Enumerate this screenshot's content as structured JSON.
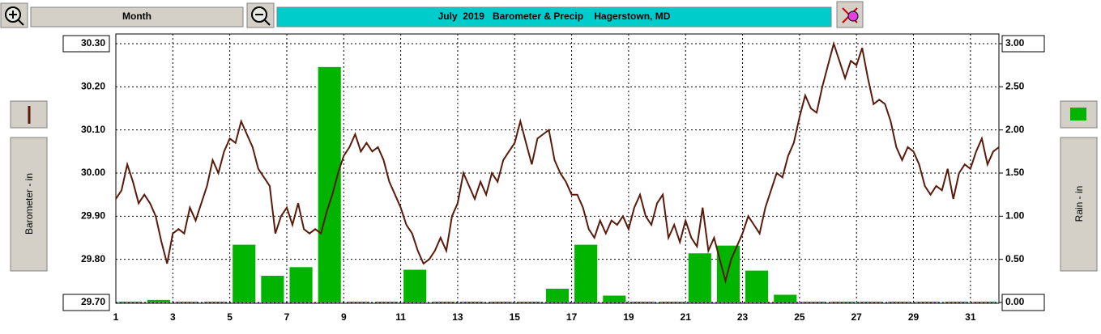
{
  "chart_data": {
    "type": "bar-line",
    "toolbar_label": "Month",
    "title": "July  2019   Barometer & Precip    Hagerstown, MD",
    "ylabel": "Barometer - in",
    "y2label": "Rain - in",
    "xlim": [
      1,
      32
    ],
    "xticks": [
      1,
      3,
      5,
      7,
      9,
      11,
      13,
      15,
      17,
      19,
      21,
      23,
      25,
      27,
      29,
      31
    ],
    "ylim": [
      29.7,
      30.3
    ],
    "yticks": [
      {
        "value": 29.7,
        "label": "29.70"
      },
      {
        "value": 29.8,
        "label": "29.80"
      },
      {
        "value": 29.9,
        "label": "29.90"
      },
      {
        "value": 30.0,
        "label": "30.00"
      },
      {
        "value": 30.1,
        "label": "30.10"
      },
      {
        "value": 30.2,
        "label": "30.20"
      },
      {
        "value": 30.3,
        "label": "30.30"
      }
    ],
    "y2lim": [
      0,
      3
    ],
    "y2ticks": [
      {
        "value": 0,
        "label": "0.00"
      },
      {
        "value": 0.5,
        "label": "0.50"
      },
      {
        "value": 1,
        "label": "1.00"
      },
      {
        "value": 1.5,
        "label": "1.50"
      },
      {
        "value": 2,
        "label": "2.00"
      },
      {
        "value": 2.5,
        "label": "2.50"
      },
      {
        "value": 3,
        "label": "3.00"
      }
    ],
    "grid": true,
    "series": [
      {
        "type": "line",
        "color": "#5a1a0a",
        "x": [
          1.0,
          1.2,
          1.4,
          1.6,
          1.8,
          2.0,
          2.2,
          2.4,
          2.6,
          2.8,
          3.0,
          3.2,
          3.4,
          3.6,
          3.8,
          4.0,
          4.2,
          4.4,
          4.6,
          4.8,
          5.0,
          5.2,
          5.4,
          5.6,
          5.8,
          6.0,
          6.2,
          6.4,
          6.6,
          6.8,
          7.0,
          7.2,
          7.4,
          7.6,
          7.8,
          8.0,
          8.2,
          8.4,
          8.6,
          8.8,
          9.0,
          9.2,
          9.4,
          9.6,
          9.8,
          10.0,
          10.2,
          10.4,
          10.6,
          10.8,
          11.0,
          11.2,
          11.4,
          11.6,
          11.8,
          12.0,
          12.2,
          12.4,
          12.6,
          12.8,
          13.0,
          13.2,
          13.4,
          13.6,
          13.8,
          14.0,
          14.2,
          14.4,
          14.6,
          14.8,
          15.0,
          15.2,
          15.4,
          15.6,
          15.8,
          16.0,
          16.2,
          16.4,
          16.6,
          16.8,
          17.0,
          17.2,
          17.4,
          17.6,
          17.8,
          18.0,
          18.2,
          18.4,
          18.6,
          18.8,
          19.0,
          19.2,
          19.4,
          19.6,
          19.8,
          20.0,
          20.2,
          20.4,
          20.6,
          20.8,
          21.0,
          21.2,
          21.4,
          21.6,
          21.8,
          22.0,
          22.2,
          22.4,
          22.6,
          22.8,
          23.0,
          23.2,
          23.4,
          23.6,
          23.8,
          24.0,
          24.2,
          24.4,
          24.6,
          24.8,
          25.0,
          25.2,
          25.4,
          25.6,
          25.8,
          26.0,
          26.2,
          26.4,
          26.6,
          26.8,
          27.0,
          27.2,
          27.4,
          27.6,
          27.8,
          28.0,
          28.2,
          28.4,
          28.6,
          28.8,
          29.0,
          29.2,
          29.4,
          29.6,
          29.8,
          30.0,
          30.2,
          30.4,
          30.6,
          30.8,
          31.0,
          31.2,
          31.4,
          31.6,
          31.8,
          32.0
        ],
        "values": [
          29.94,
          29.96,
          30.02,
          29.98,
          29.93,
          29.95,
          29.93,
          29.9,
          29.84,
          29.79,
          29.86,
          29.87,
          29.86,
          29.92,
          29.89,
          29.93,
          29.97,
          30.03,
          30.0,
          30.05,
          30.08,
          30.07,
          30.12,
          30.09,
          30.06,
          30.01,
          29.99,
          29.97,
          29.86,
          29.9,
          29.92,
          29.88,
          29.93,
          29.87,
          29.86,
          29.87,
          29.86,
          29.91,
          29.95,
          30.0,
          30.04,
          30.06,
          30.09,
          30.05,
          30.07,
          30.05,
          30.06,
          30.03,
          29.98,
          29.95,
          29.92,
          29.88,
          29.86,
          29.82,
          29.79,
          29.8,
          29.82,
          29.85,
          29.82,
          29.9,
          29.93,
          30.0,
          29.97,
          29.94,
          29.98,
          29.95,
          30.0,
          29.98,
          30.03,
          30.05,
          30.07,
          30.12,
          30.07,
          30.02,
          30.08,
          30.09,
          30.1,
          30.03,
          30.0,
          29.98,
          29.95,
          29.95,
          29.92,
          29.87,
          29.85,
          29.89,
          29.86,
          29.89,
          29.88,
          29.9,
          29.87,
          29.92,
          29.95,
          29.9,
          29.88,
          29.93,
          29.95,
          29.85,
          29.88,
          29.84,
          29.89,
          29.85,
          29.83,
          29.92,
          29.82,
          29.85,
          29.8,
          29.75,
          29.8,
          29.83,
          29.86,
          29.9,
          29.88,
          29.86,
          29.92,
          29.96,
          30.0,
          29.99,
          30.04,
          30.07,
          30.13,
          30.18,
          30.15,
          30.14,
          30.2,
          30.25,
          30.3,
          30.26,
          30.22,
          30.26,
          30.25,
          30.29,
          30.22,
          30.16,
          30.17,
          30.16,
          30.12,
          30.06,
          30.03,
          30.06,
          30.05,
          30.02,
          29.97,
          29.95,
          29.97,
          29.96,
          30.01,
          29.94,
          30.0,
          30.02,
          30.01,
          30.05,
          30.08,
          30.02,
          30.05,
          30.06
        ]
      },
      {
        "type": "bar",
        "axis": "y2",
        "color": "#00b400",
        "x": [
          1,
          2,
          3,
          4,
          5,
          6,
          7,
          8,
          9,
          10,
          11,
          12,
          13,
          14,
          15,
          16,
          17,
          18,
          19,
          20,
          21,
          22,
          23,
          24,
          25,
          26,
          27,
          28,
          29,
          30,
          31
        ],
        "values": [
          0,
          0.02,
          0,
          0,
          0.66,
          0.3,
          0.4,
          2.72,
          0,
          0,
          0.37,
          0,
          0,
          0,
          0,
          0.15,
          0.66,
          0.07,
          0,
          0,
          0.56,
          0.65,
          0.36,
          0.08,
          0,
          0,
          0,
          0,
          0,
          0,
          0
        ]
      }
    ]
  }
}
